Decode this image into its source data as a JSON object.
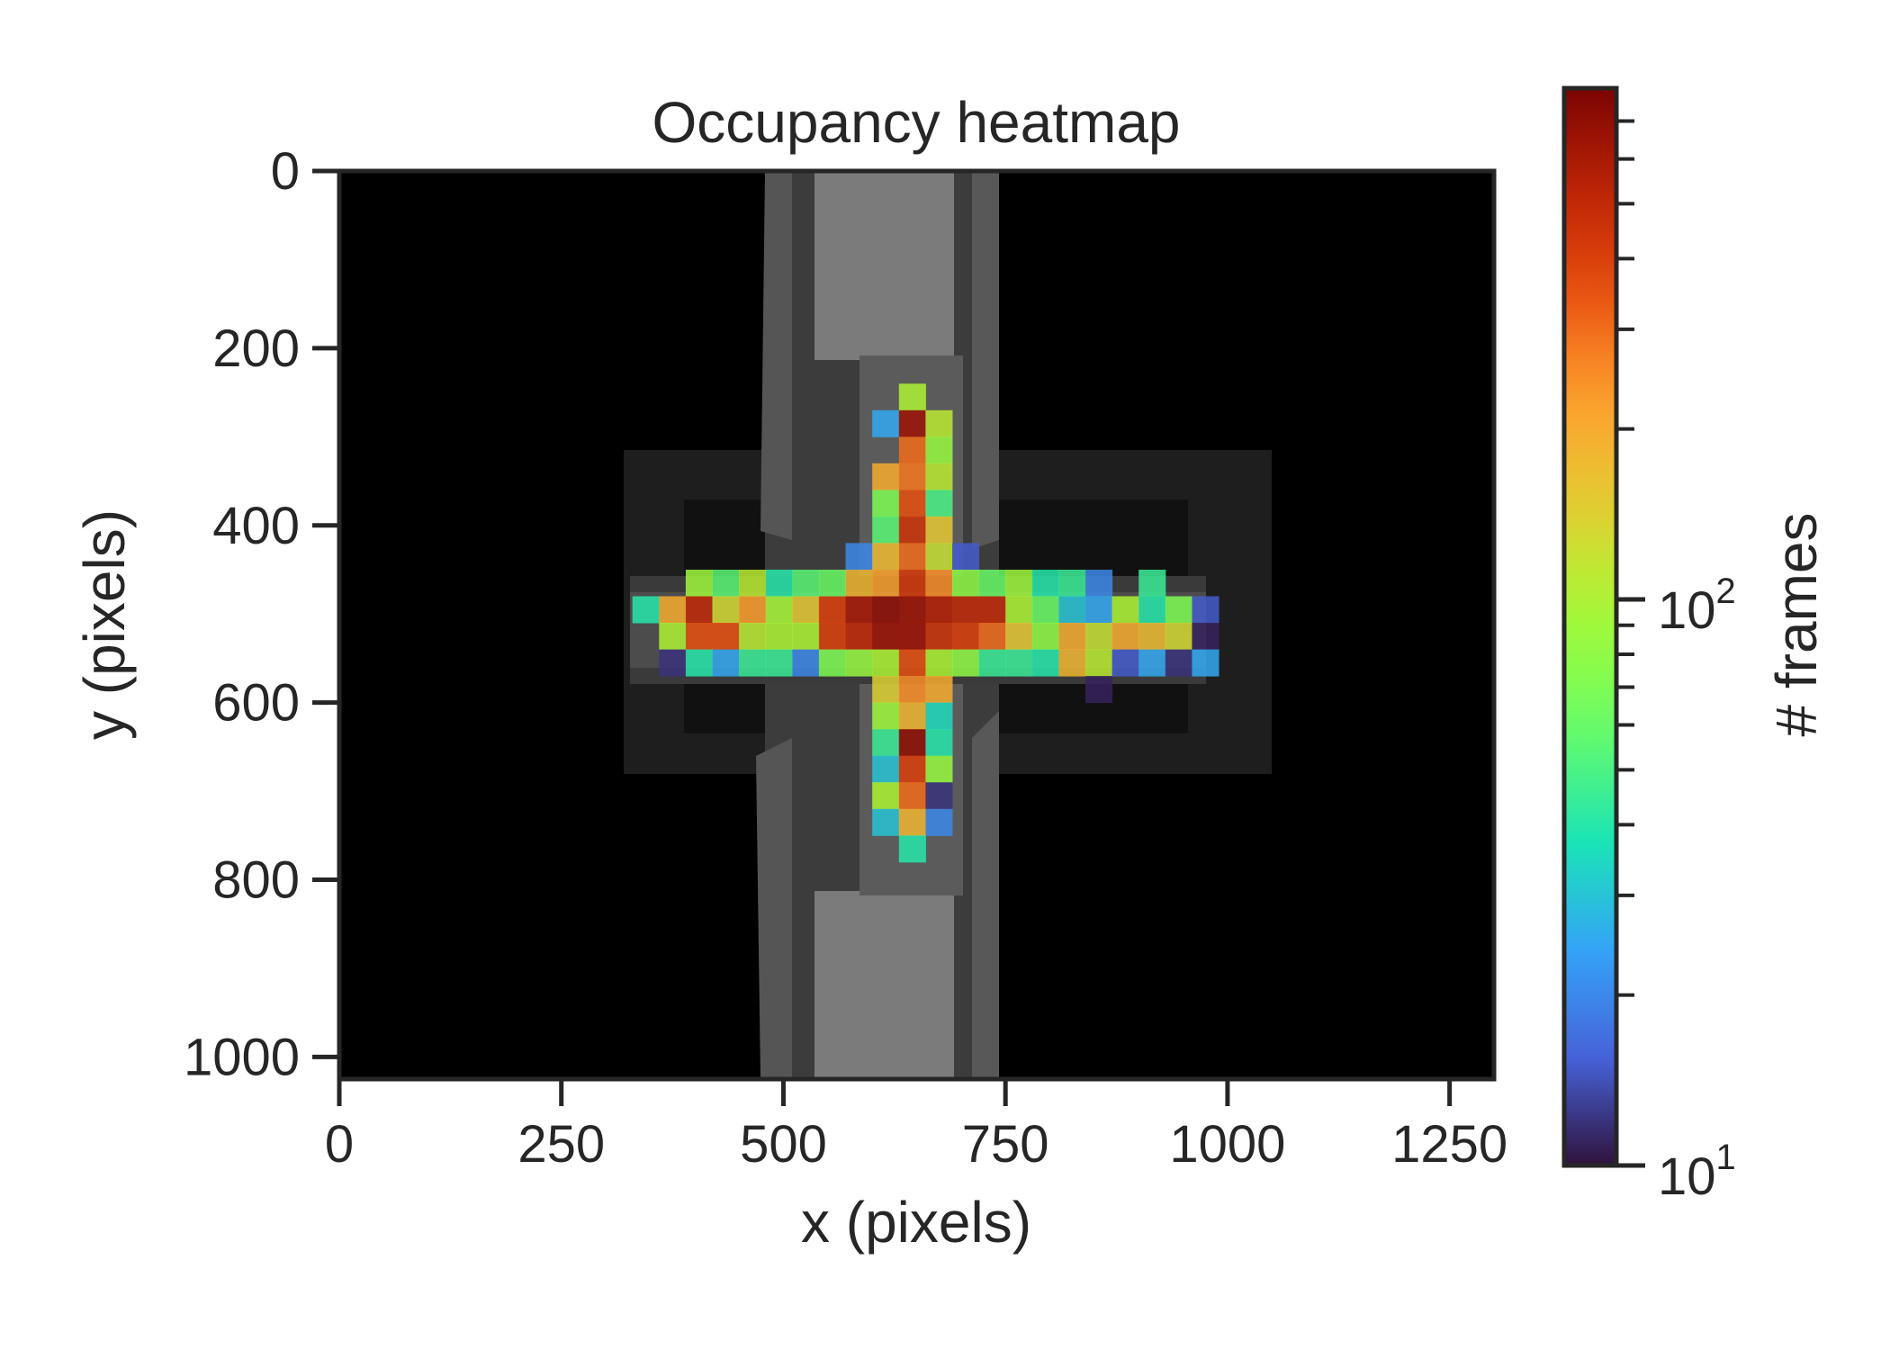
{
  "chart_data": {
    "type": "heatmap",
    "title": "Occupancy heatmap",
    "xlabel": "x (pixels)",
    "ylabel": "y (pixels)",
    "xlim": [
      0,
      1300
    ],
    "ylim": [
      1025,
      0
    ],
    "x_ticks": [
      0,
      250,
      500,
      750,
      1000,
      1250
    ],
    "y_ticks": [
      0,
      200,
      400,
      600,
      800,
      1000
    ],
    "x_tick_labels": [
      "0",
      "250",
      "500",
      "750",
      "1000",
      "1250"
    ],
    "y_tick_labels": [
      "0",
      "200",
      "400",
      "600",
      "800",
      "1000"
    ],
    "bin_size": 30,
    "colorbar": {
      "label": "# frames",
      "scale": "log",
      "range": [
        10,
        800
      ],
      "colormap": "turbo",
      "major_ticks": [
        10,
        100
      ],
      "major_tick_labels": [
        {
          "base": "10",
          "exp": "1"
        },
        {
          "base": "10",
          "exp": "2"
        }
      ],
      "minor_ticks": [
        20,
        30,
        40,
        50,
        60,
        70,
        80,
        90,
        200,
        300,
        400,
        500,
        600,
        700
      ]
    },
    "background": {
      "description": "grayscale camera frame of a plus-shaped maze",
      "colors": {
        "canvas": "#000000",
        "arm": "#4a4a4a",
        "arm_light": "#7a7a7a",
        "shadow": "#202020"
      }
    },
    "cells": [
      {
        "x": 645,
        "y": 255,
        "v": 100
      },
      {
        "x": 615,
        "y": 285,
        "v": 25
      },
      {
        "x": 645,
        "y": 285,
        "v": 650
      },
      {
        "x": 675,
        "y": 285,
        "v": 110
      },
      {
        "x": 645,
        "y": 315,
        "v": 300
      },
      {
        "x": 675,
        "y": 315,
        "v": 85
      },
      {
        "x": 615,
        "y": 345,
        "v": 200
      },
      {
        "x": 645,
        "y": 345,
        "v": 280
      },
      {
        "x": 675,
        "y": 345,
        "v": 110
      },
      {
        "x": 615,
        "y": 375,
        "v": 70
      },
      {
        "x": 645,
        "y": 375,
        "v": 350
      },
      {
        "x": 675,
        "y": 375,
        "v": 50
      },
      {
        "x": 615,
        "y": 405,
        "v": 55
      },
      {
        "x": 645,
        "y": 405,
        "v": 450
      },
      {
        "x": 675,
        "y": 405,
        "v": 150
      },
      {
        "x": 585,
        "y": 435,
        "v": 20
      },
      {
        "x": 615,
        "y": 435,
        "v": 170
      },
      {
        "x": 645,
        "y": 435,
        "v": 300
      },
      {
        "x": 675,
        "y": 435,
        "v": 120
      },
      {
        "x": 705,
        "y": 435,
        "v": 15
      },
      {
        "x": 405,
        "y": 465,
        "v": 90
      },
      {
        "x": 435,
        "y": 465,
        "v": 55
      },
      {
        "x": 465,
        "y": 465,
        "v": 110
      },
      {
        "x": 495,
        "y": 465,
        "v": 40
      },
      {
        "x": 525,
        "y": 465,
        "v": 55
      },
      {
        "x": 555,
        "y": 465,
        "v": 60
      },
      {
        "x": 585,
        "y": 465,
        "v": 180
      },
      {
        "x": 615,
        "y": 465,
        "v": 220
      },
      {
        "x": 645,
        "y": 465,
        "v": 420
      },
      {
        "x": 675,
        "y": 465,
        "v": 250
      },
      {
        "x": 705,
        "y": 465,
        "v": 80
      },
      {
        "x": 735,
        "y": 465,
        "v": 60
      },
      {
        "x": 765,
        "y": 465,
        "v": 90
      },
      {
        "x": 795,
        "y": 465,
        "v": 40
      },
      {
        "x": 825,
        "y": 465,
        "v": 45
      },
      {
        "x": 855,
        "y": 465,
        "v": 20
      },
      {
        "x": 915,
        "y": 465,
        "v": 45
      },
      {
        "x": 345,
        "y": 495,
        "v": 40
      },
      {
        "x": 375,
        "y": 495,
        "v": 200
      },
      {
        "x": 405,
        "y": 495,
        "v": 500
      },
      {
        "x": 435,
        "y": 495,
        "v": 130
      },
      {
        "x": 465,
        "y": 495,
        "v": 230
      },
      {
        "x": 495,
        "y": 495,
        "v": 95
      },
      {
        "x": 525,
        "y": 495,
        "v": 150
      },
      {
        "x": 555,
        "y": 495,
        "v": 400
      },
      {
        "x": 585,
        "y": 495,
        "v": 600
      },
      {
        "x": 615,
        "y": 495,
        "v": 700
      },
      {
        "x": 645,
        "y": 495,
        "v": 650
      },
      {
        "x": 675,
        "y": 495,
        "v": 550
      },
      {
        "x": 705,
        "y": 495,
        "v": 500
      },
      {
        "x": 735,
        "y": 495,
        "v": 500
      },
      {
        "x": 765,
        "y": 495,
        "v": 100
      },
      {
        "x": 795,
        "y": 495,
        "v": 60
      },
      {
        "x": 825,
        "y": 495,
        "v": 30
      },
      {
        "x": 855,
        "y": 495,
        "v": 25
      },
      {
        "x": 885,
        "y": 495,
        "v": 100
      },
      {
        "x": 915,
        "y": 495,
        "v": 40
      },
      {
        "x": 945,
        "y": 495,
        "v": 70
      },
      {
        "x": 975,
        "y": 495,
        "v": 15
      },
      {
        "x": 375,
        "y": 525,
        "v": 100
      },
      {
        "x": 405,
        "y": 525,
        "v": 350
      },
      {
        "x": 435,
        "y": 525,
        "v": 350
      },
      {
        "x": 465,
        "y": 525,
        "v": 110
      },
      {
        "x": 495,
        "y": 525,
        "v": 100
      },
      {
        "x": 525,
        "y": 525,
        "v": 100
      },
      {
        "x": 555,
        "y": 525,
        "v": 400
      },
      {
        "x": 585,
        "y": 525,
        "v": 500
      },
      {
        "x": 615,
        "y": 525,
        "v": 650
      },
      {
        "x": 645,
        "y": 525,
        "v": 650
      },
      {
        "x": 675,
        "y": 525,
        "v": 450
      },
      {
        "x": 705,
        "y": 525,
        "v": 400
      },
      {
        "x": 735,
        "y": 525,
        "v": 300
      },
      {
        "x": 765,
        "y": 525,
        "v": 150
      },
      {
        "x": 795,
        "y": 525,
        "v": 80
      },
      {
        "x": 825,
        "y": 525,
        "v": 200
      },
      {
        "x": 855,
        "y": 525,
        "v": 120
      },
      {
        "x": 885,
        "y": 525,
        "v": 200
      },
      {
        "x": 915,
        "y": 525,
        "v": 170
      },
      {
        "x": 945,
        "y": 525,
        "v": 130
      },
      {
        "x": 975,
        "y": 525,
        "v": 11
      },
      {
        "x": 375,
        "y": 555,
        "v": 12
      },
      {
        "x": 405,
        "y": 555,
        "v": 40
      },
      {
        "x": 435,
        "y": 555,
        "v": 25
      },
      {
        "x": 465,
        "y": 555,
        "v": 45
      },
      {
        "x": 495,
        "y": 555,
        "v": 45
      },
      {
        "x": 525,
        "y": 555,
        "v": 20
      },
      {
        "x": 555,
        "y": 555,
        "v": 70
      },
      {
        "x": 585,
        "y": 555,
        "v": 85
      },
      {
        "x": 615,
        "y": 555,
        "v": 100
      },
      {
        "x": 645,
        "y": 555,
        "v": 350
      },
      {
        "x": 675,
        "y": 555,
        "v": 100
      },
      {
        "x": 705,
        "y": 555,
        "v": 80
      },
      {
        "x": 735,
        "y": 555,
        "v": 45
      },
      {
        "x": 765,
        "y": 555,
        "v": 45
      },
      {
        "x": 795,
        "y": 555,
        "v": 40
      },
      {
        "x": 825,
        "y": 555,
        "v": 180
      },
      {
        "x": 855,
        "y": 555,
        "v": 110
      },
      {
        "x": 885,
        "y": 555,
        "v": 15
      },
      {
        "x": 915,
        "y": 555,
        "v": 25
      },
      {
        "x": 945,
        "y": 555,
        "v": 12
      },
      {
        "x": 975,
        "y": 555,
        "v": 25
      },
      {
        "x": 615,
        "y": 585,
        "v": 140
      },
      {
        "x": 645,
        "y": 585,
        "v": 250
      },
      {
        "x": 675,
        "y": 585,
        "v": 200
      },
      {
        "x": 855,
        "y": 585,
        "v": 11
      },
      {
        "x": 615,
        "y": 615,
        "v": 90
      },
      {
        "x": 645,
        "y": 615,
        "v": 180
      },
      {
        "x": 675,
        "y": 615,
        "v": 35
      },
      {
        "x": 615,
        "y": 645,
        "v": 45
      },
      {
        "x": 645,
        "y": 645,
        "v": 700
      },
      {
        "x": 675,
        "y": 645,
        "v": 40
      },
      {
        "x": 615,
        "y": 675,
        "v": 30
      },
      {
        "x": 645,
        "y": 675,
        "v": 400
      },
      {
        "x": 675,
        "y": 675,
        "v": 85
      },
      {
        "x": 615,
        "y": 705,
        "v": 100
      },
      {
        "x": 645,
        "y": 705,
        "v": 300
      },
      {
        "x": 675,
        "y": 705,
        "v": 12
      },
      {
        "x": 615,
        "y": 735,
        "v": 30
      },
      {
        "x": 645,
        "y": 735,
        "v": 180
      },
      {
        "x": 675,
        "y": 735,
        "v": 20
      },
      {
        "x": 645,
        "y": 765,
        "v": 40
      }
    ]
  }
}
